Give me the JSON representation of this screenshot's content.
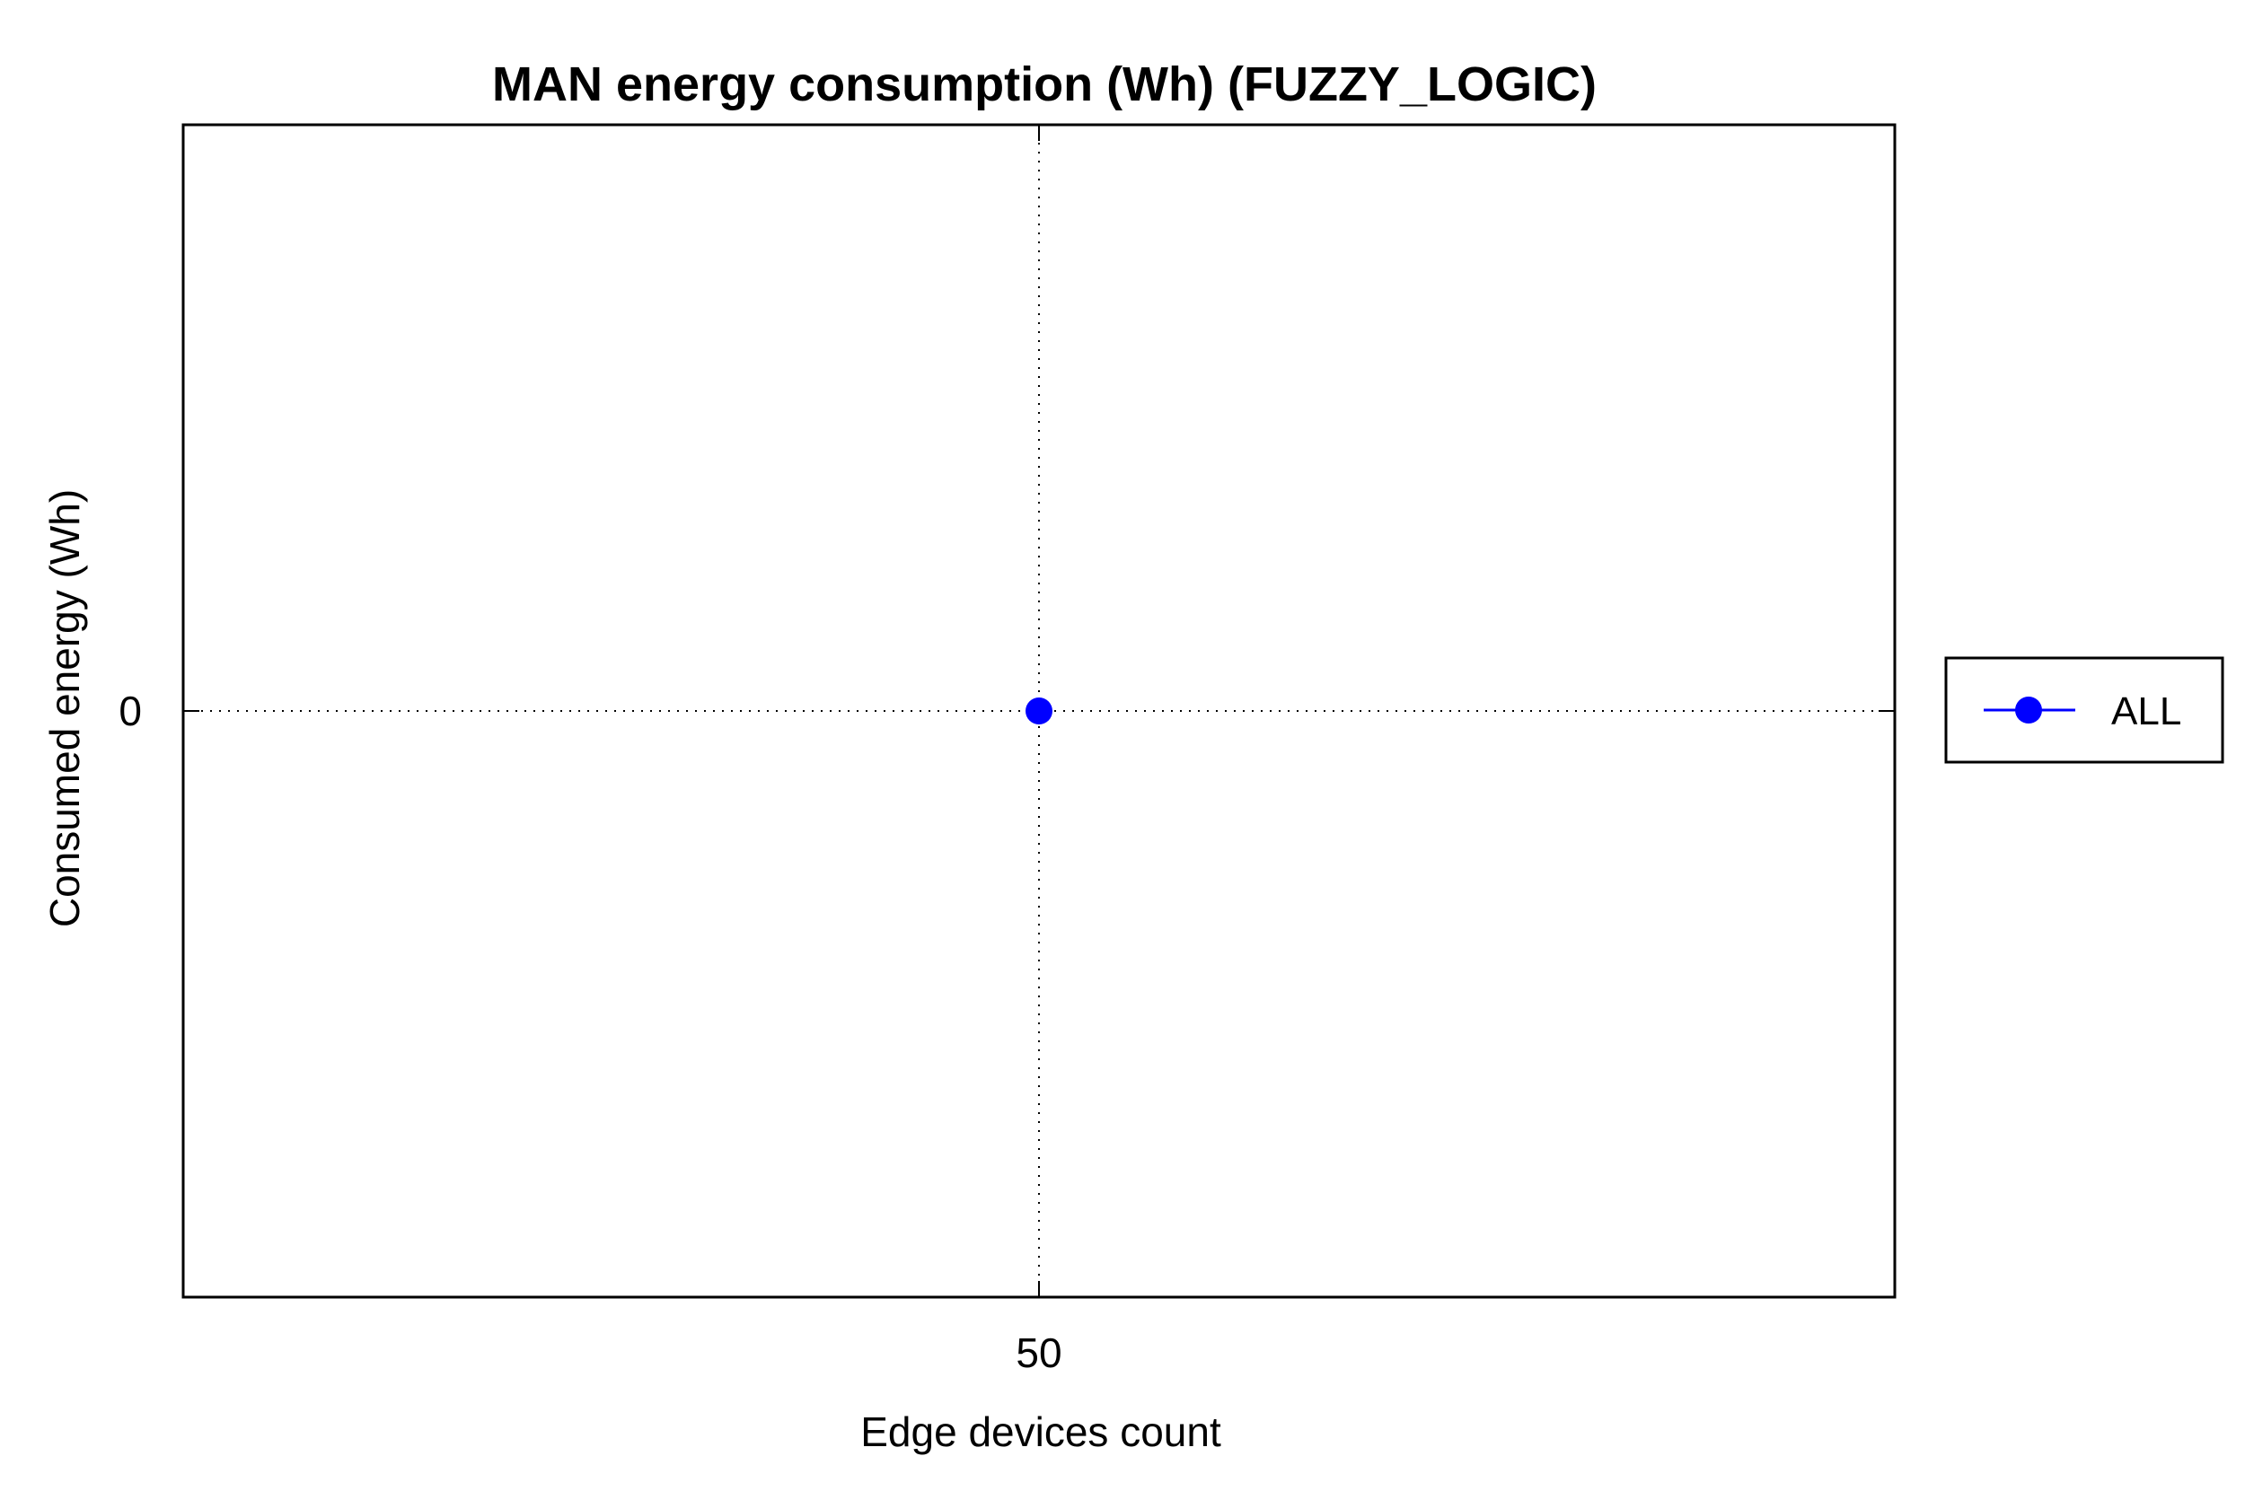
{
  "chart_data": {
    "type": "line",
    "title": "MAN energy consumption (Wh) (FUZZY_LOGIC)",
    "xlabel": "Edge devices count",
    "ylabel": "Consumed energy (Wh)",
    "x_ticks": [
      "50"
    ],
    "y_ticks": [
      "0"
    ],
    "xlim": [
      49,
      51
    ],
    "ylim": [
      -1,
      1
    ],
    "grid": true,
    "legend_position": "outside right",
    "series": [
      {
        "name": "ALL",
        "color": "#0000ff",
        "marker": "circle",
        "x": [
          50
        ],
        "y": [
          0
        ]
      }
    ]
  }
}
